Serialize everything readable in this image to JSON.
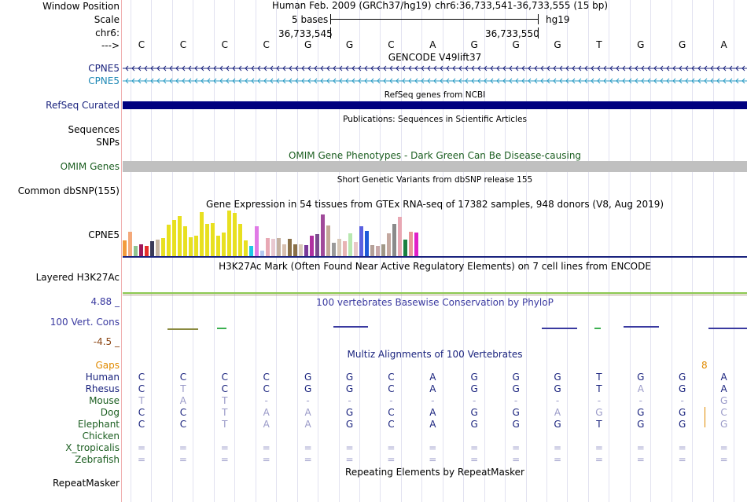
{
  "header": {
    "window_position_label": "Window Position",
    "scale_label": "Scale",
    "chr_label": "chr6:",
    "arrow_label": "--->",
    "assembly": "Human Feb. 2009 (GRCh37/hg19)",
    "position": "chr6:36,733,541-36,733,555 (15 bp)",
    "scale_text": "5 bases",
    "db": "hg19",
    "coord_left": "36,733,545",
    "coord_right": "36,733,550"
  },
  "sequence": [
    "C",
    "C",
    "C",
    "C",
    "G",
    "G",
    "C",
    "A",
    "G",
    "G",
    "G",
    "T",
    "G",
    "G",
    "A"
  ],
  "tracks": {
    "gencode": {
      "title": "GENCODE V49lift37",
      "labels": [
        "CPNE5",
        "CPNE5"
      ]
    },
    "refseq": {
      "title": "RefSeq genes from NCBI",
      "label": "RefSeq Curated"
    },
    "publications": {
      "title": "Publications: Sequences in Scientific Articles",
      "label": "Sequences"
    },
    "snps": {
      "label": "SNPs"
    },
    "omim": {
      "title": "OMIM Gene Phenotypes - Dark Green Can Be Disease-causing",
      "label": "OMIM Genes"
    },
    "dbsnp": {
      "title": "Short Genetic Variants from dbSNP release 155",
      "label": "Common dbSNP(155)"
    },
    "gtex": {
      "title": "Gene Expression in 54 tissues from GTEx RNA-seq of 17382 samples, 948 donors (V8, Aug 2019)",
      "label": "CPNE5"
    },
    "h3k27ac": {
      "title": "H3K27Ac Mark (Often Found Near Active Regulatory Elements) on 7 cell lines from ENCODE",
      "label": "Layered H3K27Ac"
    },
    "phylop": {
      "title": "100 vertebrates Basewise Conservation by PhyloP",
      "label": "100 Vert. Cons",
      "max": "4.88 _",
      "min": "-4.5 _"
    },
    "multiz": {
      "title": "Multiz Alignments of 100 Vertebrates",
      "gaps_label": "Gaps",
      "gap_count": "8",
      "species": [
        {
          "name": "Human",
          "bases": [
            "C",
            "C",
            "C",
            "C",
            "G",
            "G",
            "C",
            "A",
            "G",
            "G",
            "G",
            "T",
            "G",
            "G",
            "A"
          ]
        },
        {
          "name": "Rhesus",
          "bases": [
            "C",
            "T",
            "C",
            "C",
            "G",
            "G",
            "C",
            "A",
            "G",
            "G",
            "G",
            "T",
            "A",
            "G",
            "A"
          ]
        },
        {
          "name": "Mouse",
          "bases": [
            "T",
            "A",
            "T",
            "-",
            "-",
            "-",
            "-",
            "-",
            "-",
            "-",
            "-",
            "-",
            "-",
            "-",
            "G"
          ]
        },
        {
          "name": "Dog",
          "bases": [
            "C",
            "C",
            "T",
            "A",
            "A",
            "G",
            "C",
            "A",
            "G",
            "G",
            "A",
            "G",
            "G",
            "G",
            "C"
          ]
        },
        {
          "name": "Elephant",
          "bases": [
            "C",
            "C",
            "T",
            "A",
            "A",
            "G",
            "C",
            "A",
            "G",
            "G",
            "G",
            "T",
            "G",
            "G",
            "G"
          ]
        },
        {
          "name": "Chicken",
          "bases": []
        },
        {
          "name": "X_tropicalis",
          "bases": [
            "=",
            "=",
            "=",
            "=",
            "=",
            "=",
            "=",
            "=",
            "=",
            "=",
            "=",
            "=",
            "=",
            "=",
            "="
          ]
        },
        {
          "name": "Zebrafish",
          "bases": [
            "=",
            "=",
            "=",
            "=",
            "=",
            "=",
            "=",
            "=",
            "=",
            "=",
            "=",
            "=",
            "=",
            "=",
            "="
          ]
        }
      ]
    },
    "repeatmasker": {
      "title": "Repeating Elements by RepeatMasker",
      "label": "RepeatMasker"
    }
  },
  "chart_data": {
    "type": "bar",
    "title": "Gene Expression in 54 tissues from GTEx RNA-seq of 17382 samples, 948 donors (V8, Aug 2019)",
    "ylabel": "",
    "xlabel": "",
    "ylim": [
      0,
      58
    ],
    "values": [
      18,
      28,
      12,
      14,
      12,
      17,
      19,
      21,
      36,
      42,
      46,
      34,
      22,
      24,
      51,
      37,
      38,
      24,
      27,
      53,
      50,
      37,
      18,
      12,
      34,
      6,
      21,
      20,
      21,
      14,
      20,
      14,
      14,
      13,
      24,
      25,
      48,
      35,
      15,
      20,
      17,
      26,
      16,
      34,
      29,
      13,
      12,
      14,
      26,
      37,
      45,
      19,
      28,
      27
    ],
    "colors": [
      "#f29a3d",
      "#f4a97a",
      "#8fc48f",
      "#a0195a",
      "#e6302a",
      "#3a3a58",
      "#c6b4a0",
      "#e8e020",
      "#e8e020",
      "#e8e020",
      "#e8e020",
      "#e8e020",
      "#e8e020",
      "#e8e020",
      "#e8e020",
      "#e8e020",
      "#e8e020",
      "#e8e020",
      "#e8e020",
      "#e8e020",
      "#e8e020",
      "#e8e020",
      "#e8e020",
      "#1ec8e6",
      "#e07ae6",
      "#b4c8f0",
      "#e8a8b4",
      "#e8c8d0",
      "#c4b0a0",
      "#d8c0b0",
      "#8a7048",
      "#8a7048",
      "#d8c8b8",
      "#7a3a9a",
      "#b030a0",
      "#7a4a8e",
      "#a04a9a",
      "#c4a898",
      "#9a9a9a",
      "#d8c8b8",
      "#e8b4b4",
      "#b8e8b0",
      "#e8c8c8",
      "#5a60e0",
      "#1e5ad8",
      "#b4a098",
      "#c8a8a8",
      "#a09888",
      "#c4a8a0",
      "#8a8a8a",
      "#e8a8b4",
      "#188040",
      "#e89898",
      "#e020c8"
    ]
  },
  "colors": {
    "navy": "#00007f",
    "gencode_dark": "#1a237e",
    "gencode_cyan": "#2a9bc4",
    "omim_gray": "#c0c0c0",
    "h3k27ac_line": "#8cc850",
    "multiz_blue": "#1a237e",
    "multiz_light": "#9a9ac8",
    "species_green": "#1b5e20"
  }
}
